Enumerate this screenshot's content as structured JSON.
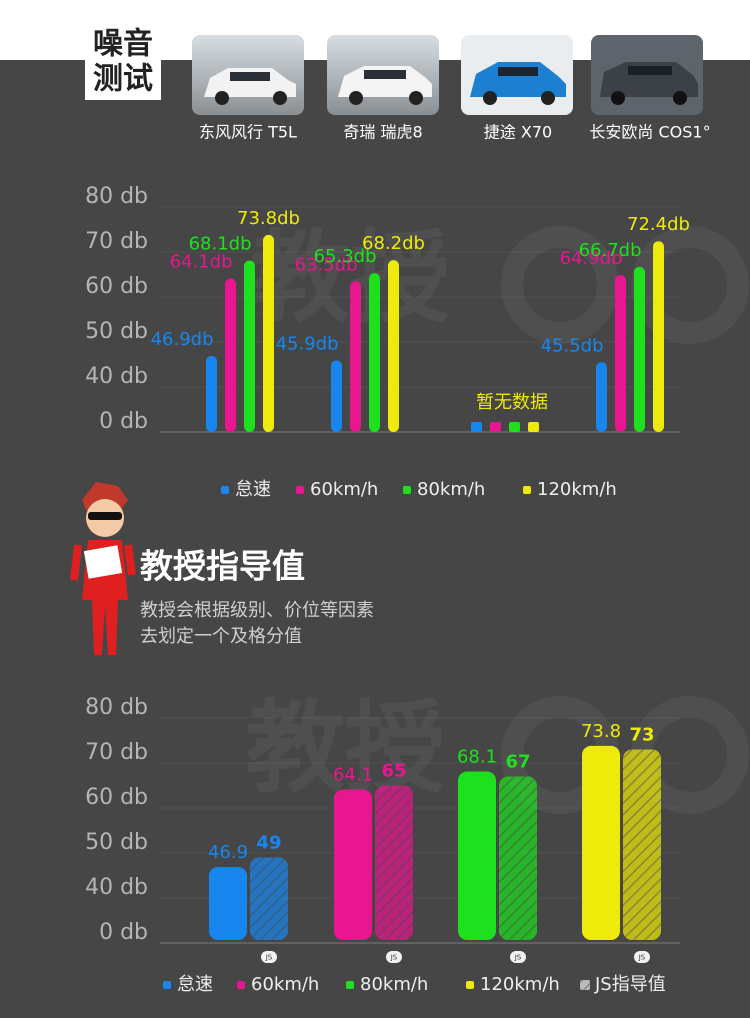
{
  "header": {
    "title_lines": [
      "噪音",
      "测试"
    ]
  },
  "watermark": "教授",
  "guide": {
    "title": "教授指导值",
    "lines": [
      "教授会根据级别、价位等因素",
      "去划定一个及格分值"
    ]
  },
  "chart_data": [
    {
      "type": "grouped_bar",
      "categories": [
        "东风风行 T5L",
        "奇瑞 瑞虎8",
        "捷途 X70",
        "长安欧尚 COS1°"
      ],
      "series": [
        {
          "name": "怠速",
          "color": "#1787ef",
          "values": [
            46.9,
            45.9,
            null,
            45.5
          ],
          "value_labels": [
            "46.9db",
            "45.9db",
            null,
            "45.5db"
          ]
        },
        {
          "name": "60km/h",
          "color": "#e8168f",
          "values": [
            64.1,
            63.5,
            null,
            64.9
          ],
          "value_labels": [
            "64.1db",
            "63.5db",
            null,
            "64.9db"
          ]
        },
        {
          "name": "80km/h",
          "color": "#1fe01f",
          "values": [
            68.1,
            65.3,
            null,
            66.7
          ],
          "value_labels": [
            "68.1db",
            "65.3db",
            null,
            "66.7db"
          ]
        },
        {
          "name": "120km/h",
          "color": "#eeea0a",
          "values": [
            73.8,
            68.2,
            null,
            72.4
          ],
          "value_labels": [
            "73.8db",
            "68.2db",
            null,
            "72.4db"
          ]
        }
      ],
      "no_data_label": "暂无数据",
      "ylim": [
        0,
        80
      ],
      "yticks": [
        {
          "value": 0,
          "label": "0 db"
        },
        {
          "value": 40,
          "label": "40 db"
        },
        {
          "value": 50,
          "label": "50 db"
        },
        {
          "value": 60,
          "label": "60 db"
        },
        {
          "value": 70,
          "label": "70 db"
        },
        {
          "value": 80,
          "label": "80 db"
        }
      ],
      "legend": "bottom"
    },
    {
      "type": "paired_bar",
      "categories": [
        "怠速",
        "60km/h",
        "80km/h",
        "120km/h"
      ],
      "colors": [
        "#1787ef",
        "#e8168f",
        "#1fe01f",
        "#eeea0a"
      ],
      "series": [
        {
          "values": [
            46.9,
            64.1,
            68.1,
            73.8
          ]
        },
        {
          "name": "JS指导值",
          "values": [
            49,
            65,
            67,
            73
          ],
          "hatch": true
        }
      ],
      "badge": "JS",
      "ylim": [
        0,
        80
      ],
      "yticks": [
        {
          "value": 0,
          "label": "0 db"
        },
        {
          "value": 40,
          "label": "40 db"
        },
        {
          "value": 50,
          "label": "50 db"
        },
        {
          "value": 60,
          "label": "60 db"
        },
        {
          "value": 70,
          "label": "70 db"
        },
        {
          "value": 80,
          "label": "80 db"
        }
      ],
      "legend": "bottom"
    }
  ]
}
